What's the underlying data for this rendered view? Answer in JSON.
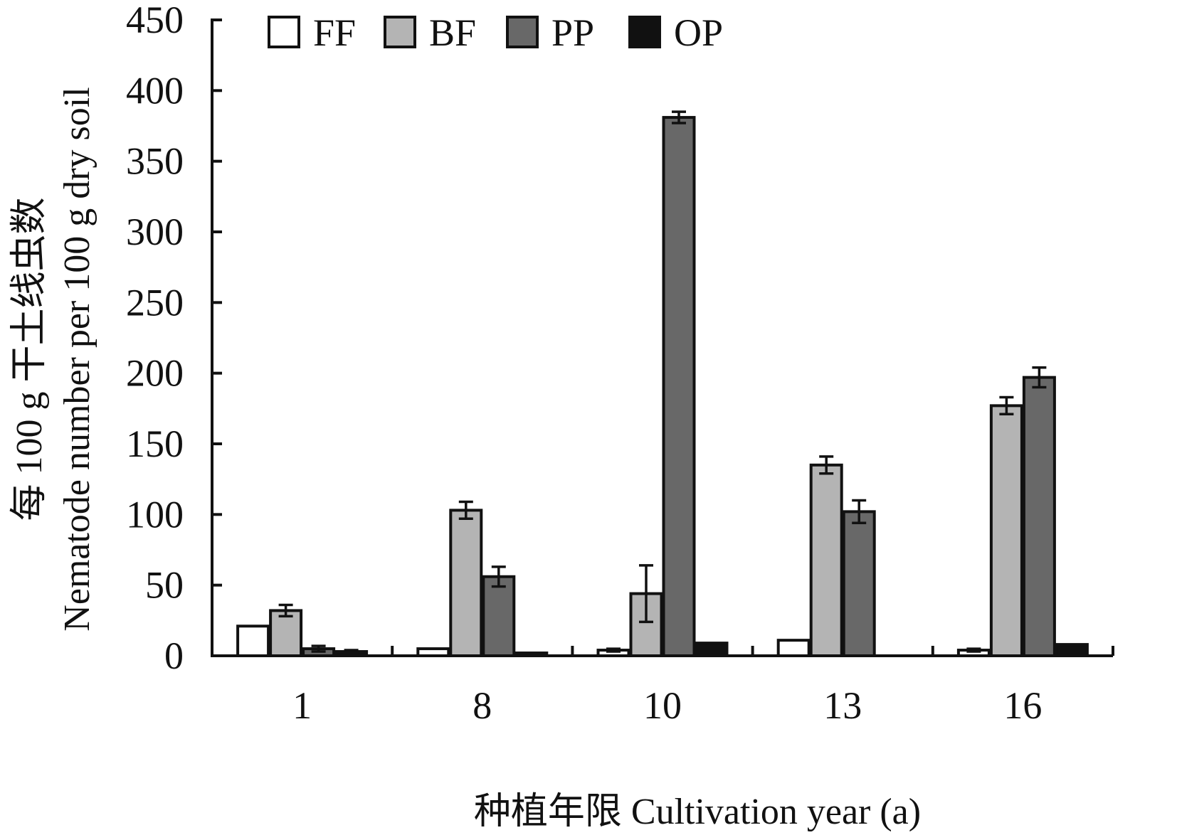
{
  "chart_data": {
    "type": "bar",
    "categories": [
      "1",
      "8",
      "10",
      "13",
      "16"
    ],
    "series": [
      {
        "name": "FF",
        "color": "#ffffff",
        "values": [
          21,
          5,
          4,
          11,
          4
        ],
        "errors": [
          0,
          0,
          1,
          0,
          1
        ]
      },
      {
        "name": "BF",
        "color": "#b4b4b4",
        "values": [
          32,
          103,
          44,
          135,
          177
        ],
        "errors": [
          4,
          6,
          20,
          6,
          6
        ]
      },
      {
        "name": "PP",
        "color": "#686868",
        "values": [
          5,
          56,
          381,
          102,
          197
        ],
        "errors": [
          2,
          7,
          4,
          8,
          7
        ]
      },
      {
        "name": "OP",
        "color": "#111111",
        "values": [
          3,
          2,
          9,
          0,
          8
        ],
        "errors": [
          1,
          0,
          0,
          0,
          0
        ]
      }
    ],
    "ylim": [
      0,
      450
    ],
    "yticks": [
      0,
      50,
      100,
      150,
      200,
      250,
      300,
      350,
      400,
      450
    ],
    "ylabel_cn": "每 100 g 干土线虫数",
    "ylabel_en": "Nematode number per 100 g dry soil",
    "xlabel": "种植年限 Cultivation year (a)",
    "legend": "top-left",
    "grid": false
  }
}
